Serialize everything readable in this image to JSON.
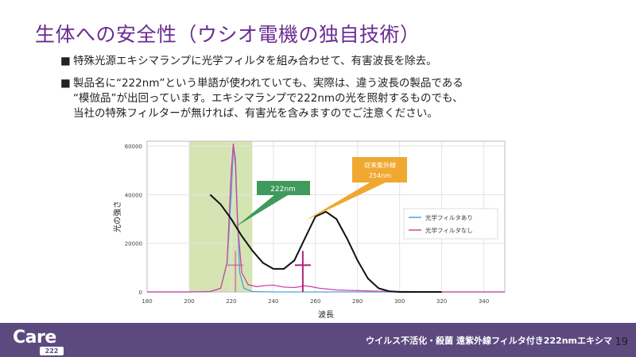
{
  "slide": {
    "title": "生体への安全性（ウシオ電機の独自技術）",
    "page_number": "19"
  },
  "bullets": [
    {
      "mark": "■",
      "lines": [
        "特殊光源エキシマランプに光学フィルタを組み合わせて、有害波長を除去。"
      ]
    },
    {
      "mark": "■",
      "lines": [
        "製品名に“222nm”という単語が使われていても、実際は、違う波長の製品である",
        "“模倣品”が出回っています。エキシマランプで222nmの光を照射するものでも、",
        "当社の特殊フィルターが無ければ、有害光を含みますのでご注意ください。"
      ]
    }
  ],
  "footer": {
    "logo_text": "Care",
    "logo_sub": "222",
    "caption": "ウイルス不活化・殺菌 遠紫外線フィルタ付き222nmエキシマ"
  },
  "chart_data": {
    "type": "line",
    "xlabel": "波長",
    "ylabel": "光の強さ",
    "xlim": [
      180,
      350
    ],
    "ylim": [
      0,
      62000
    ],
    "xticks": [
      180,
      200,
      220,
      240,
      260,
      280,
      300,
      320,
      340
    ],
    "yticks": [
      0,
      20000,
      40000,
      60000
    ],
    "grid": true,
    "highlight_band": [
      200,
      230
    ],
    "legend_position": "right",
    "series": [
      {
        "name": "光学フィルタあり",
        "color": "#4da3e0",
        "x": [
          180,
          200,
          210,
          215,
          218,
          220,
          221,
          222,
          223,
          224,
          226,
          230,
          240,
          260,
          280,
          320,
          350
        ],
        "y": [
          0,
          0,
          100,
          1500,
          12000,
          40000,
          60000,
          55000,
          30000,
          8000,
          1500,
          200,
          0,
          0,
          0,
          0,
          0
        ]
      },
      {
        "name": "光学フィルタなし",
        "color": "#d0459f",
        "x": [
          180,
          200,
          210,
          215,
          218,
          220,
          221,
          222,
          223,
          225,
          228,
          232,
          236,
          240,
          245,
          250,
          255,
          258,
          262,
          270,
          290,
          320,
          350
        ],
        "y": [
          0,
          0,
          200,
          1500,
          12000,
          50000,
          61000,
          52000,
          28000,
          8000,
          3000,
          2200,
          2600,
          2800,
          2000,
          1800,
          2500,
          2200,
          1500,
          800,
          300,
          0,
          0
        ]
      },
      {
        "name": "",
        "color": "#111111",
        "x": [
          210,
          215,
          220,
          225,
          230,
          235,
          240,
          245,
          250,
          255,
          260,
          265,
          270,
          275,
          280,
          285,
          290,
          295,
          300,
          320
        ],
        "y": [
          40000,
          36000,
          30000,
          23000,
          17000,
          12000,
          9500,
          9500,
          13000,
          22000,
          31000,
          33000,
          30000,
          22000,
          13000,
          5500,
          1500,
          300,
          0,
          0
        ]
      }
    ],
    "annotations": [
      {
        "text": "222nm",
        "x": 222,
        "color": "#3f9a5c"
      },
      {
        "text": "従来紫外線",
        "text2": "254nm",
        "x": 254,
        "color": "#f0a830"
      }
    ]
  }
}
